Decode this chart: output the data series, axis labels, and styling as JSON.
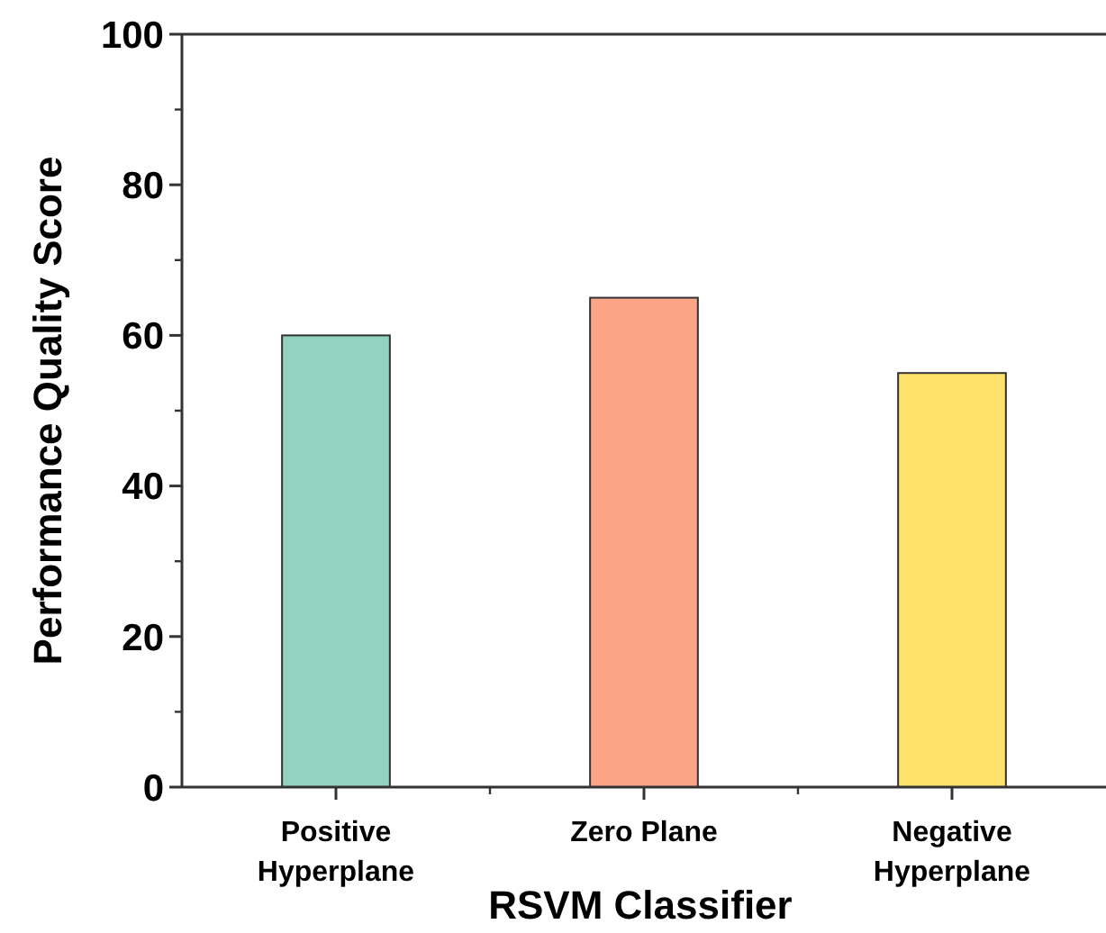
{
  "chart_data": {
    "type": "bar",
    "xlabel": "RSVM Classifier",
    "ylabel": "Performance Quality Score",
    "categories": [
      "Positive\nHyperplane",
      "Zero Plane",
      "Negative\nHyperplane"
    ],
    "values": [
      60,
      65,
      55
    ],
    "colors": [
      "#92d2bf",
      "#fca486",
      "#fde16a"
    ],
    "ylim": [
      0,
      100
    ],
    "yticks": [
      0,
      20,
      40,
      60,
      80,
      100
    ],
    "grid": false
  }
}
